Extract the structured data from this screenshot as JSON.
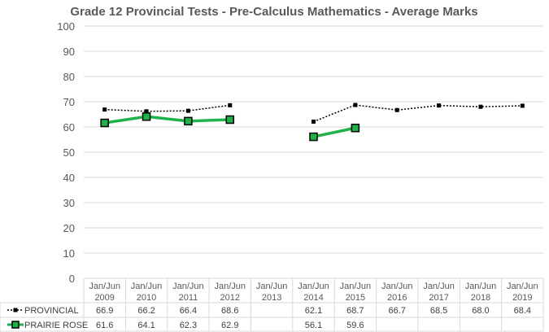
{
  "chart_data": {
    "type": "line",
    "title": "Grade 12 Provincial Tests - Pre-Calculus Mathematics - Average Marks",
    "categories": [
      [
        "Jan/Jun",
        "2009"
      ],
      [
        "Jan/Jun",
        "2010"
      ],
      [
        "Jan/Jun",
        "2011"
      ],
      [
        "Jan/Jun",
        "2012"
      ],
      [
        "Jan/Jun",
        "2013"
      ],
      [
        "Jan/Jun",
        "2014"
      ],
      [
        "Jan/Jun",
        "2015"
      ],
      [
        "Jan/Jun",
        "2016"
      ],
      [
        "Jan/Jun",
        "2017"
      ],
      [
        "Jan/Jun",
        "2018"
      ],
      [
        "Jan/Jun",
        "2019"
      ]
    ],
    "ylim": [
      0,
      100
    ],
    "yticks": [
      0,
      10,
      20,
      30,
      40,
      50,
      60,
      70,
      80,
      90,
      100
    ],
    "grid": true,
    "legend": "data-table-left",
    "series": [
      {
        "name": "PROVINCIAL",
        "color": "#000000",
        "style": "dotted",
        "marker": "square-small",
        "values": [
          66.9,
          66.2,
          66.4,
          68.6,
          null,
          62.1,
          68.7,
          66.7,
          68.5,
          68.0,
          68.4
        ]
      },
      {
        "name": "PRAIRIE ROSE",
        "color": "#1db34a",
        "style": "solid",
        "marker": "square-large",
        "values": [
          61.6,
          64.1,
          62.3,
          62.9,
          null,
          56.1,
          59.6,
          null,
          null,
          null,
          null
        ]
      }
    ]
  }
}
